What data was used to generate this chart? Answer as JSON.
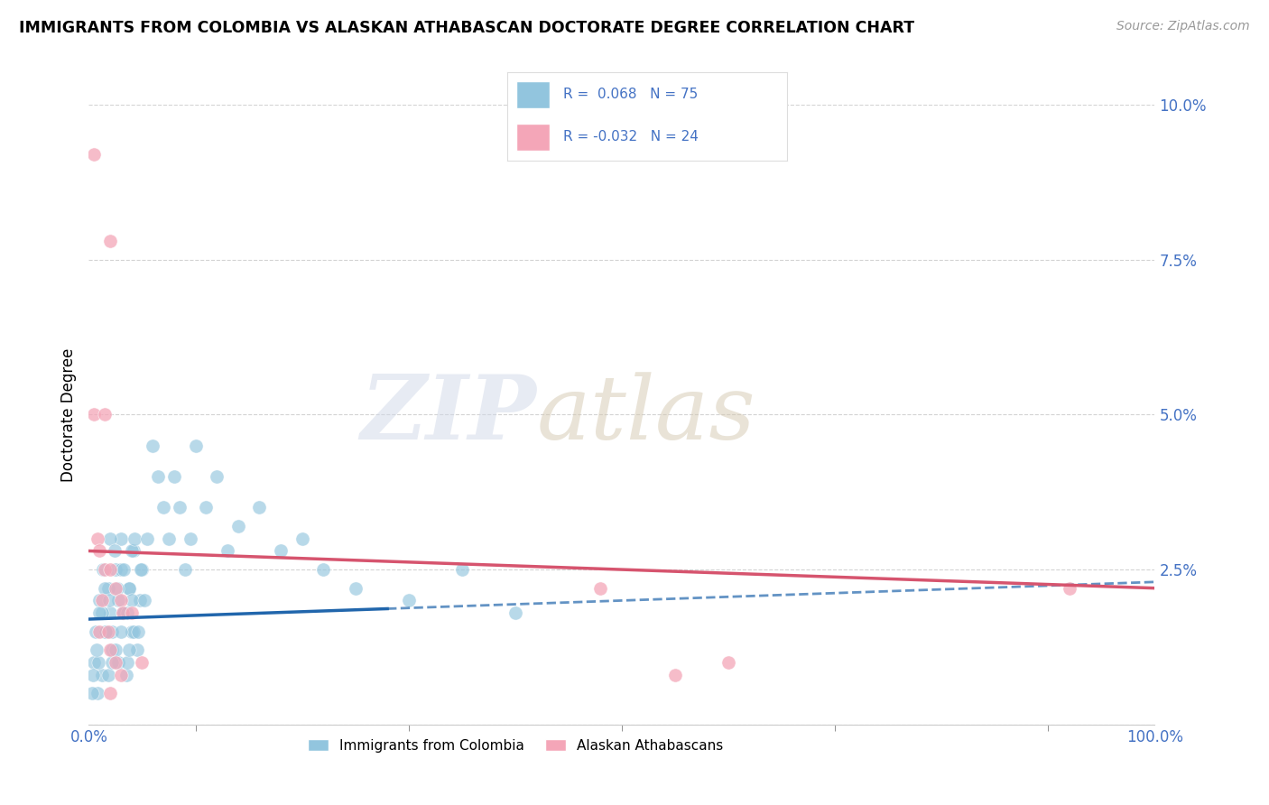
{
  "title": "IMMIGRANTS FROM COLOMBIA VS ALASKAN ATHABASCAN DOCTORATE DEGREE CORRELATION CHART",
  "source": "Source: ZipAtlas.com",
  "xlabel": "",
  "ylabel": "Doctorate Degree",
  "r_colombia": 0.068,
  "n_colombia": 75,
  "r_athabascan": -0.032,
  "n_athabascan": 24,
  "blue_color": "#92c5de",
  "pink_color": "#f4a6b8",
  "blue_line_color": "#2166ac",
  "pink_line_color": "#d6546e",
  "blue_scatter": [
    [
      0.005,
      0.01
    ],
    [
      0.008,
      0.005
    ],
    [
      0.01,
      0.02
    ],
    [
      0.012,
      0.008
    ],
    [
      0.015,
      0.015
    ],
    [
      0.018,
      0.022
    ],
    [
      0.02,
      0.018
    ],
    [
      0.022,
      0.012
    ],
    [
      0.025,
      0.025
    ],
    [
      0.028,
      0.01
    ],
    [
      0.03,
      0.03
    ],
    [
      0.032,
      0.018
    ],
    [
      0.035,
      0.008
    ],
    [
      0.038,
      0.022
    ],
    [
      0.04,
      0.015
    ],
    [
      0.042,
      0.028
    ],
    [
      0.045,
      0.012
    ],
    [
      0.048,
      0.02
    ],
    [
      0.05,
      0.025
    ],
    [
      0.003,
      0.005
    ],
    [
      0.006,
      0.015
    ],
    [
      0.009,
      0.01
    ],
    [
      0.012,
      0.018
    ],
    [
      0.015,
      0.022
    ],
    [
      0.018,
      0.008
    ],
    [
      0.02,
      0.03
    ],
    [
      0.022,
      0.015
    ],
    [
      0.025,
      0.012
    ],
    [
      0.028,
      0.02
    ],
    [
      0.03,
      0.025
    ],
    [
      0.033,
      0.018
    ],
    [
      0.036,
      0.01
    ],
    [
      0.038,
      0.022
    ],
    [
      0.04,
      0.028
    ],
    [
      0.042,
      0.015
    ],
    [
      0.004,
      0.008
    ],
    [
      0.007,
      0.012
    ],
    [
      0.01,
      0.018
    ],
    [
      0.013,
      0.025
    ],
    [
      0.016,
      0.015
    ],
    [
      0.019,
      0.02
    ],
    [
      0.022,
      0.01
    ],
    [
      0.024,
      0.028
    ],
    [
      0.027,
      0.022
    ],
    [
      0.03,
      0.015
    ],
    [
      0.033,
      0.025
    ],
    [
      0.036,
      0.018
    ],
    [
      0.038,
      0.012
    ],
    [
      0.04,
      0.02
    ],
    [
      0.043,
      0.03
    ],
    [
      0.046,
      0.015
    ],
    [
      0.049,
      0.025
    ],
    [
      0.052,
      0.02
    ],
    [
      0.055,
      0.03
    ],
    [
      0.06,
      0.045
    ],
    [
      0.065,
      0.04
    ],
    [
      0.07,
      0.035
    ],
    [
      0.075,
      0.03
    ],
    [
      0.08,
      0.04
    ],
    [
      0.085,
      0.035
    ],
    [
      0.09,
      0.025
    ],
    [
      0.095,
      0.03
    ],
    [
      0.1,
      0.045
    ],
    [
      0.11,
      0.035
    ],
    [
      0.12,
      0.04
    ],
    [
      0.13,
      0.028
    ],
    [
      0.14,
      0.032
    ],
    [
      0.16,
      0.035
    ],
    [
      0.18,
      0.028
    ],
    [
      0.2,
      0.03
    ],
    [
      0.22,
      0.025
    ],
    [
      0.25,
      0.022
    ],
    [
      0.3,
      0.02
    ],
    [
      0.35,
      0.025
    ],
    [
      0.4,
      0.018
    ]
  ],
  "pink_scatter": [
    [
      0.005,
      0.092
    ],
    [
      0.02,
      0.078
    ],
    [
      0.005,
      0.05
    ],
    [
      0.015,
      0.05
    ],
    [
      0.008,
      0.03
    ],
    [
      0.01,
      0.028
    ],
    [
      0.015,
      0.025
    ],
    [
      0.02,
      0.025
    ],
    [
      0.025,
      0.022
    ],
    [
      0.03,
      0.02
    ],
    [
      0.032,
      0.018
    ],
    [
      0.01,
      0.015
    ],
    [
      0.012,
      0.02
    ],
    [
      0.018,
      0.015
    ],
    [
      0.02,
      0.012
    ],
    [
      0.025,
      0.01
    ],
    [
      0.03,
      0.008
    ],
    [
      0.04,
      0.018
    ],
    [
      0.05,
      0.01
    ],
    [
      0.48,
      0.022
    ],
    [
      0.6,
      0.01
    ],
    [
      0.02,
      0.005
    ],
    [
      0.55,
      0.008
    ],
    [
      0.92,
      0.022
    ]
  ],
  "xlim": [
    0.0,
    1.0
  ],
  "ylim": [
    0.0,
    0.1
  ],
  "yticks": [
    0.0,
    0.025,
    0.05,
    0.075,
    0.1
  ],
  "ytick_labels": [
    "",
    "2.5%",
    "5.0%",
    "7.5%",
    "10.0%"
  ],
  "xtick_labels": [
    "0.0%",
    "100.0%"
  ],
  "watermark_zip": "ZIP",
  "watermark_atlas": "atlas",
  "background_color": "#ffffff",
  "grid_color": "#c8c8c8",
  "blue_trend_intercept": 0.017,
  "blue_trend_slope": 0.006,
  "pink_trend_intercept": 0.028,
  "pink_trend_slope": -0.006
}
